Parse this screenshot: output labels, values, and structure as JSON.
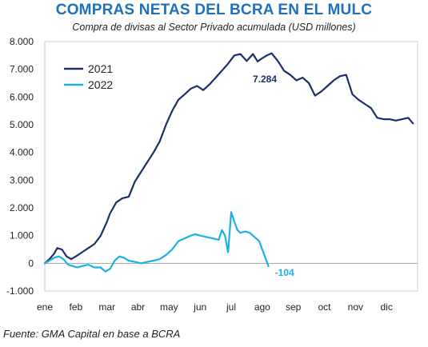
{
  "chart_data": {
    "type": "line",
    "title": "COMPRAS NETAS DEL BCRA EN EL MULC",
    "subtitle": "Compra de divisas al Sector Privado acumulada (USD millones)",
    "xlabel": "",
    "ylabel": "",
    "ylim": [
      -1000,
      8000
    ],
    "yticks": [
      -1000,
      0,
      1000,
      2000,
      3000,
      4000,
      5000,
      6000,
      7000,
      8000
    ],
    "ytick_labels": [
      "-1.000",
      "0",
      "1.000",
      "2.000",
      "3.000",
      "4.000",
      "5.000",
      "6.000",
      "7.000",
      "8.000"
    ],
    "xlim": [
      0,
      12
    ],
    "xticks": [
      0,
      1,
      2,
      3,
      4,
      5,
      6,
      7,
      8,
      9,
      10,
      11
    ],
    "xtick_labels": [
      "ene",
      "feb",
      "mar",
      "abr",
      "may",
      "jun",
      "jul",
      "ago",
      "sep",
      "oct",
      "nov",
      "dic"
    ],
    "grid": false,
    "legend": "top-left",
    "series": [
      {
        "name": "2021",
        "color": "#1a2f6b",
        "x": [
          0,
          0.15,
          0.3,
          0.4,
          0.55,
          0.7,
          0.85,
          1.0,
          1.2,
          1.4,
          1.6,
          1.8,
          2.0,
          2.1,
          2.3,
          2.5,
          2.7,
          2.9,
          3.1,
          3.3,
          3.5,
          3.7,
          3.9,
          4.1,
          4.3,
          4.5,
          4.7,
          4.9,
          5.1,
          5.3,
          5.5,
          5.7,
          5.9,
          6.1,
          6.3,
          6.5,
          6.7,
          6.85,
          7.0,
          7.15,
          7.3,
          7.5,
          7.7,
          7.9,
          8.1,
          8.3,
          8.5,
          8.7,
          8.9,
          9.1,
          9.3,
          9.5,
          9.7,
          9.9,
          10.1,
          10.3,
          10.5,
          10.7,
          10.9,
          11.1,
          11.3,
          11.5,
          11.7,
          11.85
        ],
        "values": [
          0,
          150,
          350,
          550,
          500,
          250,
          150,
          250,
          400,
          550,
          700,
          1000,
          1500,
          1800,
          2200,
          2350,
          2400,
          2950,
          3300,
          3650,
          4000,
          4400,
          5000,
          5500,
          5900,
          6100,
          6300,
          6400,
          6250,
          6450,
          6700,
          6950,
          7200,
          7500,
          7550,
          7300,
          7550,
          7284,
          7400,
          7500,
          7580,
          7300,
          6950,
          6800,
          6600,
          6700,
          6500,
          6050,
          6200,
          6400,
          6600,
          6750,
          6800,
          6100,
          5900,
          5750,
          5600,
          5250,
          5200,
          5200,
          5150,
          5200,
          5250,
          5050
        ]
      },
      {
        "name": "2022",
        "color": "#1ab0e8",
        "x": [
          0,
          0.15,
          0.3,
          0.45,
          0.6,
          0.75,
          0.9,
          1.05,
          1.2,
          1.4,
          1.6,
          1.8,
          1.95,
          2.1,
          2.25,
          2.4,
          2.55,
          2.7,
          2.9,
          3.1,
          3.3,
          3.5,
          3.7,
          3.9,
          4.1,
          4.3,
          4.5,
          4.7,
          4.85,
          5.0,
          5.2,
          5.4,
          5.6,
          5.7,
          5.8,
          5.9,
          6.0,
          6.1,
          6.2,
          6.3,
          6.45,
          6.6,
          6.75,
          6.9,
          7.0,
          7.1,
          7.2
        ],
        "values": [
          0,
          100,
          200,
          250,
          150,
          -50,
          -100,
          -150,
          -100,
          -50,
          -150,
          -150,
          -300,
          -200,
          100,
          250,
          200,
          100,
          50,
          0,
          50,
          100,
          150,
          300,
          500,
          800,
          900,
          1000,
          1050,
          1000,
          950,
          900,
          850,
          1200,
          1000,
          400,
          1850,
          1500,
          1200,
          1100,
          1150,
          1100,
          950,
          800,
          500,
          200,
          -104
        ]
      }
    ],
    "annotations": [
      {
        "text": "7.284",
        "x": 6.85,
        "y": 7284,
        "series": "2021"
      },
      {
        "text": "-104",
        "x": 7.2,
        "y": -104,
        "series": "2022"
      }
    ]
  },
  "source": "Fuente: GMA Capital en base a BCRA"
}
